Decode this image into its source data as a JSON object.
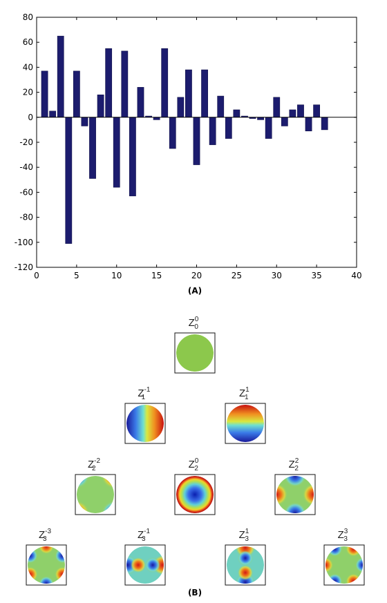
{
  "chart_data": [
    {
      "type": "bar",
      "panel_label": "(A)",
      "x": [
        1,
        2,
        3,
        4,
        5,
        6,
        7,
        8,
        9,
        10,
        11,
        12,
        13,
        14,
        15,
        16,
        17,
        18,
        19,
        20,
        21,
        22,
        23,
        24,
        25,
        26,
        27,
        28,
        29,
        30,
        31,
        32,
        33,
        34,
        35,
        36
      ],
      "values": [
        37,
        5,
        65,
        -101,
        37,
        -7,
        -49,
        18,
        55,
        -56,
        53,
        -63,
        24,
        1,
        -2,
        55,
        -25,
        16,
        38,
        -38,
        38,
        -22,
        17,
        -17,
        6,
        1,
        -1,
        -2,
        -17,
        16,
        -7,
        6,
        10,
        -11,
        10,
        -10
      ],
      "xlim": [
        0,
        40
      ],
      "ylim": [
        -120,
        80
      ],
      "x_ticks": [
        0,
        5,
        10,
        15,
        20,
        25,
        30,
        35,
        40
      ],
      "y_ticks": [
        80,
        60,
        40,
        20,
        0,
        -20,
        -40,
        -60,
        -80,
        -100,
        -120
      ],
      "bar_color": "#1c1c6e",
      "grid": false
    }
  ],
  "zernike_panel": {
    "panel_label": "(B)",
    "modes": [
      {
        "id": "z0_0",
        "base": "Z",
        "sub": "0",
        "sup": "0"
      },
      {
        "id": "z1_m1",
        "base": "Z",
        "sub": "1",
        "sup": "-1"
      },
      {
        "id": "z1_1",
        "base": "Z",
        "sub": "1",
        "sup": "1"
      },
      {
        "id": "z2_m2",
        "base": "Z",
        "sub": "2",
        "sup": "-2"
      },
      {
        "id": "z2_0",
        "base": "Z",
        "sub": "2",
        "sup": "0"
      },
      {
        "id": "z2_2",
        "base": "Z",
        "sub": "2",
        "sup": "2"
      },
      {
        "id": "z3_m3",
        "base": "Z",
        "sub": "3",
        "sup": "-3"
      },
      {
        "id": "z3_m1",
        "base": "Z",
        "sub": "3",
        "sup": "-1"
      },
      {
        "id": "z3_1",
        "base": "Z",
        "sub": "3",
        "sup": "1"
      },
      {
        "id": "z3_3",
        "base": "Z",
        "sub": "3",
        "sup": "3"
      }
    ]
  }
}
